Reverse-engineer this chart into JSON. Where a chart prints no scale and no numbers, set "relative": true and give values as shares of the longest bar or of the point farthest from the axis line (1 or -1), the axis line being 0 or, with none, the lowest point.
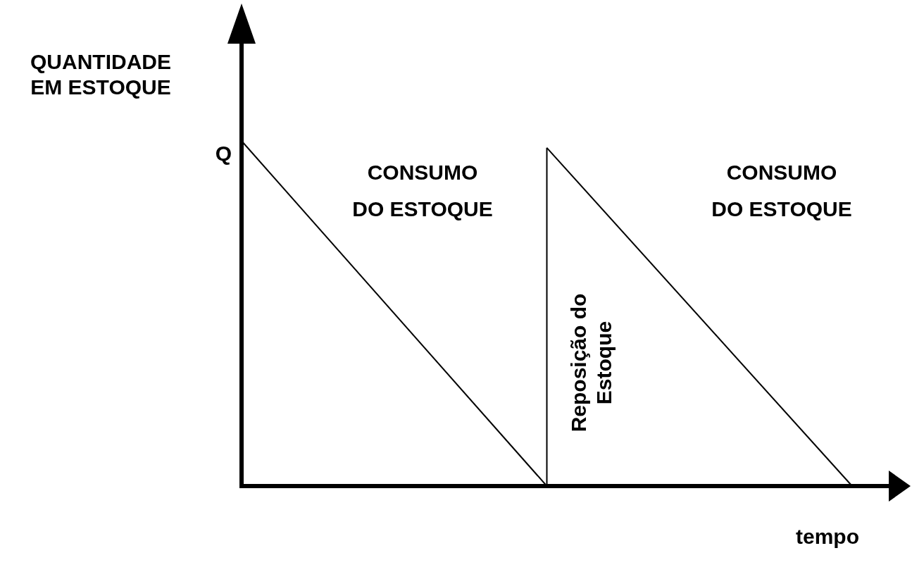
{
  "chart_data": {
    "type": "line",
    "relative": true,
    "xlabel": "tempo",
    "ylabel": "QUANTIDADE\nEM ESTOQUE",
    "categories": [
      null,
      null,
      null
    ],
    "series": [
      {
        "color": "#000000",
        "values": [
          1,
          0,
          null
        ]
      },
      {
        "color": "#000000",
        "values": [
          null,
          0.98,
          0
        ]
      }
    ],
    "annotations": [
      "Q",
      "CONSUMO\nDO ESTOQUE",
      "CONSUMO\nDO ESTOQUE",
      "Reposição do\nEstoque"
    ]
  }
}
